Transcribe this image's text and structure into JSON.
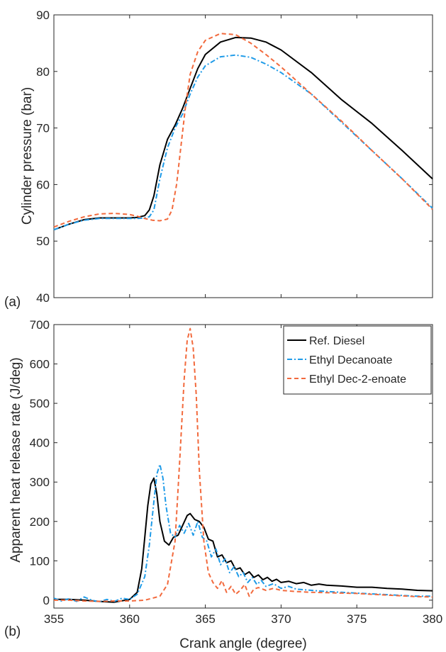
{
  "colors": {
    "ref_diesel": "#000000",
    "ethyl_decanoate": "#1f9be8",
    "ethyl_dec2enoate": "#f26a3d",
    "axis": "#262626"
  },
  "chart_data": [
    {
      "id": "a",
      "type": "line",
      "panel_label": "(a)",
      "title": "",
      "xlabel": "",
      "ylabel": "Cylinder pressure (bar)",
      "xlim": [
        355,
        380
      ],
      "ylim": [
        40,
        90
      ],
      "yticks": [
        "40",
        "50",
        "60",
        "70",
        "80",
        "90"
      ],
      "xticks": [],
      "grid": false,
      "series": [
        {
          "name": "Ref. Diesel",
          "color": "#000000",
          "style": "solid",
          "x": [
            355,
            356,
            357,
            358,
            359,
            360,
            360.5,
            361,
            361.3,
            361.6,
            362,
            362.5,
            363,
            363.5,
            364,
            364.5,
            365,
            366,
            367,
            368,
            369,
            370,
            372,
            374,
            376,
            378,
            380
          ],
          "y": [
            52.0,
            53.0,
            53.8,
            54.1,
            54.1,
            54.1,
            54.2,
            54.5,
            55.5,
            58.0,
            63.5,
            68.0,
            70.5,
            73.5,
            77.0,
            80.5,
            83.0,
            85.2,
            86.0,
            85.9,
            85.2,
            83.8,
            79.8,
            75.0,
            70.8,
            66.0,
            61.0
          ]
        },
        {
          "name": "Ethyl Decanoate",
          "color": "#1f9be8",
          "style": "dashdot",
          "x": [
            355,
            356,
            357,
            358,
            359,
            360,
            360.5,
            361,
            361.3,
            361.6,
            362,
            362.5,
            363,
            363.5,
            364,
            364.5,
            365,
            366,
            367,
            368,
            369,
            370,
            372,
            374,
            376,
            378,
            380
          ],
          "y": [
            52.0,
            53.0,
            53.7,
            54.0,
            54.0,
            54.0,
            54.0,
            54.1,
            54.3,
            55.5,
            61.0,
            66.5,
            70.0,
            72.5,
            76.0,
            79.0,
            81.0,
            82.6,
            82.9,
            82.5,
            81.3,
            79.8,
            76.0,
            71.0,
            66.0,
            61.0,
            55.8
          ]
        },
        {
          "name": "Ethyl Dec-2-enoate",
          "color": "#f26a3d",
          "style": "dashed",
          "x": [
            355,
            356,
            357,
            358,
            359,
            360,
            360.5,
            361,
            361.5,
            362,
            362.5,
            362.8,
            363.1,
            363.4,
            363.7,
            364,
            364.5,
            365,
            366,
            367,
            368,
            369,
            370,
            372,
            374,
            376,
            378,
            380
          ],
          "y": [
            52.5,
            53.5,
            54.3,
            54.8,
            54.9,
            54.7,
            54.4,
            54.0,
            53.7,
            53.6,
            53.9,
            55.5,
            60.0,
            67.0,
            74.0,
            79.5,
            83.5,
            85.5,
            86.7,
            86.5,
            85.0,
            83.0,
            80.8,
            76.0,
            71.2,
            66.0,
            61.0,
            55.6
          ]
        }
      ]
    },
    {
      "id": "b",
      "type": "line",
      "panel_label": "(b)",
      "title": "",
      "xlabel": "Crank angle (degree)",
      "ylabel": "Apparent heat release rate (J/deg)",
      "xlim": [
        355,
        380
      ],
      "ylim": [
        -20,
        700
      ],
      "yticks": [
        "0",
        "100",
        "200",
        "300",
        "400",
        "500",
        "600",
        "700"
      ],
      "xticks": [
        "355",
        "360",
        "365",
        "370",
        "375",
        "380"
      ],
      "grid": false,
      "legend": {
        "position": "top-right",
        "entries": [
          "Ref. Diesel",
          "Ethyl Decanoate",
          "Ethyl Dec-2-enoate"
        ]
      },
      "series": [
        {
          "name": "Ref. Diesel",
          "color": "#000000",
          "style": "solid",
          "x": [
            355,
            356,
            357,
            358,
            359,
            360,
            360.5,
            360.8,
            361.0,
            361.2,
            361.4,
            361.6,
            361.8,
            362.0,
            362.3,
            362.6,
            362.9,
            363.2,
            363.5,
            363.8,
            364.0,
            364.3,
            364.6,
            364.9,
            365.2,
            365.5,
            365.8,
            366.1,
            366.4,
            366.7,
            367.0,
            367.3,
            367.6,
            367.9,
            368.2,
            368.5,
            368.8,
            369.1,
            369.4,
            369.7,
            370.0,
            370.5,
            371,
            371.5,
            372,
            372.5,
            373,
            374,
            375,
            376,
            377,
            378,
            379,
            380
          ],
          "y": [
            2,
            2,
            0,
            -3,
            -5,
            2,
            20,
            80,
            160,
            240,
            295,
            310,
            270,
            200,
            150,
            140,
            160,
            165,
            190,
            215,
            220,
            205,
            200,
            185,
            155,
            150,
            110,
            115,
            95,
            100,
            78,
            82,
            65,
            72,
            58,
            64,
            52,
            58,
            48,
            53,
            45,
            48,
            42,
            45,
            38,
            41,
            38,
            36,
            33,
            33,
            30,
            28,
            25,
            24
          ]
        },
        {
          "name": "Ethyl Decanoate",
          "color": "#1f9be8",
          "style": "dashdot",
          "x": [
            355,
            355.5,
            356,
            356.5,
            357,
            357.5,
            358,
            358.5,
            359,
            359.5,
            360,
            360.5,
            361,
            361.3,
            361.6,
            361.8,
            362.0,
            362.2,
            362.4,
            362.7,
            363.0,
            363.3,
            363.6,
            363.9,
            364.2,
            364.5,
            364.8,
            365.1,
            365.4,
            365.7,
            366.0,
            366.3,
            366.6,
            366.9,
            367.2,
            367.5,
            367.8,
            368.1,
            368.4,
            368.7,
            369.0,
            369.5,
            370,
            370.5,
            371,
            372,
            373,
            374,
            375,
            376,
            377,
            378,
            379,
            380
          ],
          "y": [
            5,
            -2,
            4,
            -3,
            8,
            0,
            -4,
            2,
            -3,
            5,
            2,
            15,
            60,
            140,
            250,
            320,
            345,
            310,
            240,
            170,
            160,
            190,
            170,
            195,
            165,
            200,
            160,
            150,
            110,
            130,
            90,
            105,
            70,
            85,
            60,
            70,
            45,
            58,
            40,
            50,
            35,
            42,
            30,
            35,
            28,
            25,
            22,
            20,
            18,
            16,
            14,
            12,
            10,
            10
          ]
        },
        {
          "name": "Ethyl Dec-2-enoate",
          "color": "#f26a3d",
          "style": "dashed",
          "x": [
            355,
            356,
            357,
            358,
            359,
            360,
            361,
            362,
            362.5,
            363.0,
            363.3,
            363.6,
            363.8,
            364.0,
            364.2,
            364.4,
            364.6,
            364.9,
            365.2,
            365.5,
            365.8,
            366.1,
            366.4,
            366.7,
            367.0,
            367.3,
            367.6,
            367.9,
            368.2,
            368.5,
            369,
            369.5,
            370,
            371,
            372,
            373,
            374,
            375,
            376,
            377,
            378,
            379,
            380
          ],
          "y": [
            0,
            0,
            -2,
            -3,
            -2,
            -2,
            0,
            10,
            40,
            150,
            350,
            560,
            660,
            690,
            640,
            520,
            330,
            150,
            70,
            45,
            30,
            50,
            20,
            35,
            15,
            25,
            40,
            10,
            28,
            32,
            25,
            30,
            25,
            22,
            20,
            19,
            18,
            17,
            15,
            13,
            11,
            9,
            8
          ]
        }
      ]
    }
  ]
}
